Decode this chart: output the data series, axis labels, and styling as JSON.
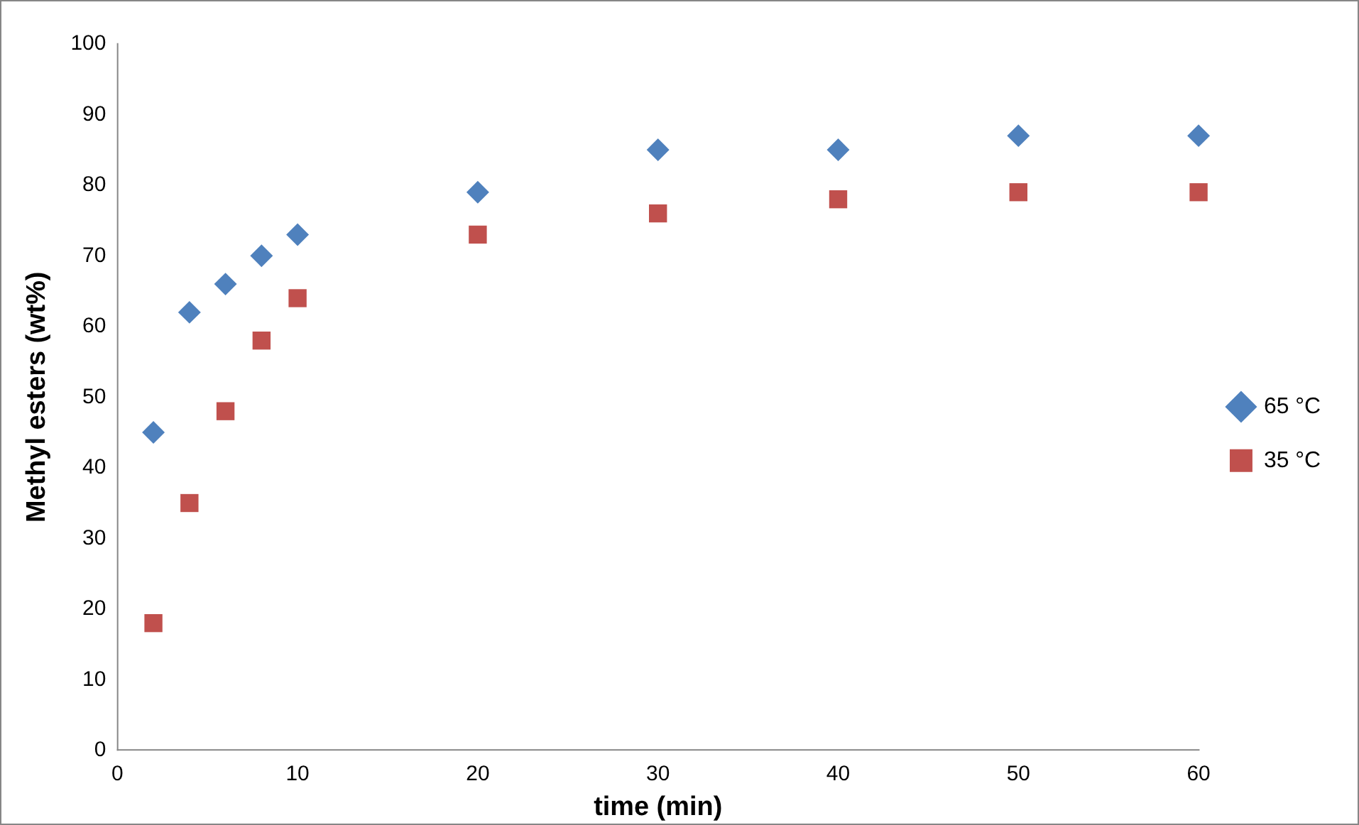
{
  "chart_data": {
    "type": "scatter",
    "xlabel": "time (min)",
    "ylabel": "Methyl esters (wt%)",
    "xlim": [
      0,
      60
    ],
    "xticks": [
      0,
      10,
      20,
      30,
      40,
      50,
      60
    ],
    "ylim": [
      0,
      100
    ],
    "yticks": [
      0,
      10,
      20,
      30,
      40,
      50,
      60,
      70,
      80,
      90,
      100
    ],
    "grid": false,
    "legend": "right",
    "series": [
      {
        "name": "65 °C",
        "color": "#4f81bd",
        "marker": "diamond",
        "x": [
          2,
          4,
          6,
          8,
          10,
          20,
          30,
          40,
          50,
          60
        ],
        "values": [
          45,
          62,
          66,
          70,
          73,
          79,
          85,
          85,
          87,
          87
        ]
      },
      {
        "name": "35 °C",
        "color": "#c0504d",
        "marker": "square",
        "x": [
          2,
          4,
          6,
          8,
          10,
          20,
          30,
          40,
          50,
          60
        ],
        "values": [
          18,
          35,
          48,
          58,
          64,
          73,
          76,
          78,
          79,
          79
        ]
      }
    ]
  }
}
